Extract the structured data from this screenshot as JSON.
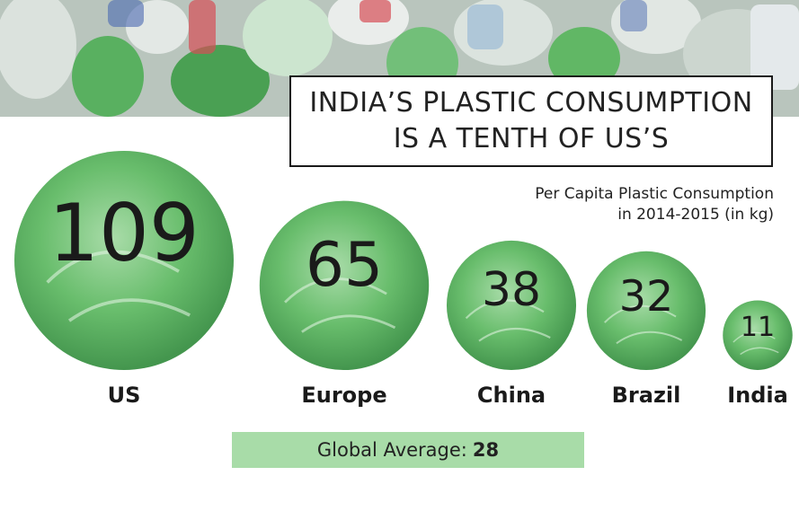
{
  "title_lines": [
    "INDIA’S PLASTIC CONSUMPTION",
    "IS A TENTH OF US’S"
  ],
  "subtitle_lines": [
    "Per Capita Plastic Consumption",
    "in 2014-2015 (in kg)"
  ],
  "global_average": {
    "label": "Global Average:",
    "value": "28"
  },
  "colors": {
    "bubble": "#58b65c",
    "bubble_dark": "#2f8a3a",
    "avg_band": "#a8dca8"
  },
  "chart_data": {
    "type": "bubble",
    "title": "INDIA’S PLASTIC CONSUMPTION IS A TENTH OF US’S",
    "subtitle": "Per Capita Plastic Consumption in 2014-2015 (in kg)",
    "categories": [
      "US",
      "Europe",
      "China",
      "Brazil",
      "India"
    ],
    "values": [
      109,
      65,
      38,
      32,
      11
    ],
    "value_labels": [
      "109",
      "65",
      "38",
      "32",
      "11"
    ],
    "reference": {
      "label": "Global Average:",
      "value": 28
    }
  }
}
